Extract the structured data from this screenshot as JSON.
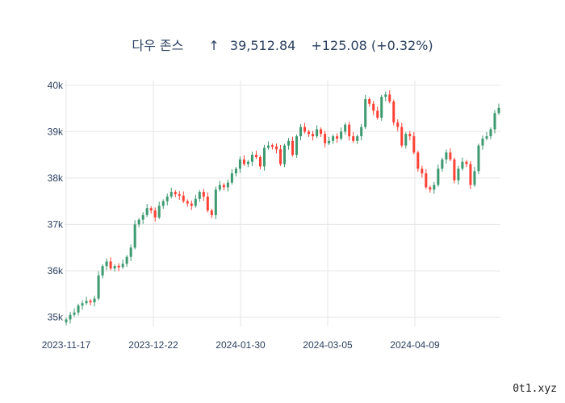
{
  "chart_data": {
    "type": "candlestick",
    "title": {
      "name": "다우 존스",
      "arrow": "↑",
      "price": "39,512.84",
      "change": "+125.08 (+0.32%)"
    },
    "xlabel": "",
    "ylabel": "",
    "ylim": [
      34800,
      40100
    ],
    "x_ticks": [
      "2023-11-17",
      "2023-12-22",
      "2024-01-30",
      "2024-03-05",
      "2024-04-09"
    ],
    "y_ticks": [
      {
        "value": 35000,
        "label": "35k"
      },
      {
        "value": 36000,
        "label": "36k"
      },
      {
        "value": 37000,
        "label": "37k"
      },
      {
        "value": 38000,
        "label": "38k"
      },
      {
        "value": 39000,
        "label": "39k"
      },
      {
        "value": 40000,
        "label": "40k"
      }
    ],
    "grid": true,
    "colors": {
      "up": "#3d9970",
      "down": "#ff4136",
      "grid": "#e5e5e5",
      "text": "#2a3f5f"
    },
    "closes": [
      34950,
      35050,
      35100,
      35250,
      35300,
      35350,
      35320,
      35400,
      35900,
      36100,
      36200,
      36050,
      36100,
      36080,
      36150,
      36300,
      36500,
      37000,
      37100,
      37200,
      37350,
      37300,
      37150,
      37400,
      37500,
      37600,
      37700,
      37650,
      37620,
      37500,
      37450,
      37400,
      37550,
      37700,
      37600,
      37300,
      37200,
      37750,
      37850,
      37800,
      37900,
      38100,
      38200,
      38400,
      38300,
      38350,
      38500,
      38450,
      38250,
      38650,
      38700,
      38680,
      38620,
      38300,
      38700,
      38800,
      38500,
      38900,
      39100,
      39000,
      38950,
      38900,
      39050,
      38950,
      38750,
      38800,
      38900,
      38850,
      39000,
      39150,
      38900,
      38800,
      38900,
      39100,
      39700,
      39600,
      39450,
      39300,
      39750,
      39800,
      39650,
      39200,
      39100,
      38700,
      38950,
      38900,
      38550,
      38200,
      38100,
      37800,
      37750,
      37850,
      38200,
      38400,
      38550,
      38400,
      37950,
      38200,
      38350,
      38300,
      37850,
      38150,
      38700,
      38850,
      38900,
      39050,
      39400,
      39512.84
    ]
  },
  "watermark": "0t1.xyz"
}
